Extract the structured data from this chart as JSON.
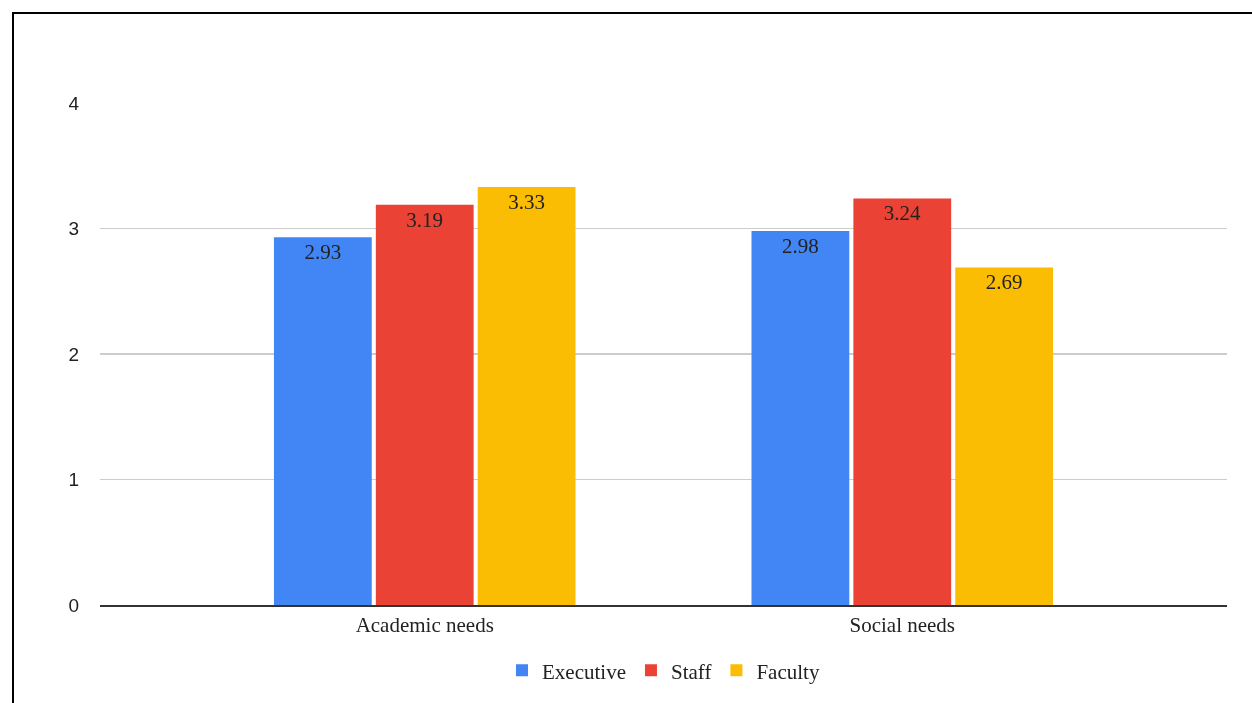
{
  "chart_data": {
    "type": "bar",
    "categories": [
      "Academic needs",
      "Social needs"
    ],
    "series": [
      {
        "name": "Executive",
        "color": "#4285f4",
        "values": [
          2.93,
          2.98
        ]
      },
      {
        "name": "Staff",
        "color": "#ea4335",
        "values": [
          3.19,
          3.24
        ]
      },
      {
        "name": "Faculty",
        "color": "#fbbc04",
        "values": [
          3.33,
          2.69
        ]
      }
    ],
    "ylim": [
      0,
      4
    ],
    "yticks": [
      0,
      1,
      2,
      3,
      4
    ],
    "grid": "y",
    "legend": "bottom",
    "data_labels": true
  }
}
